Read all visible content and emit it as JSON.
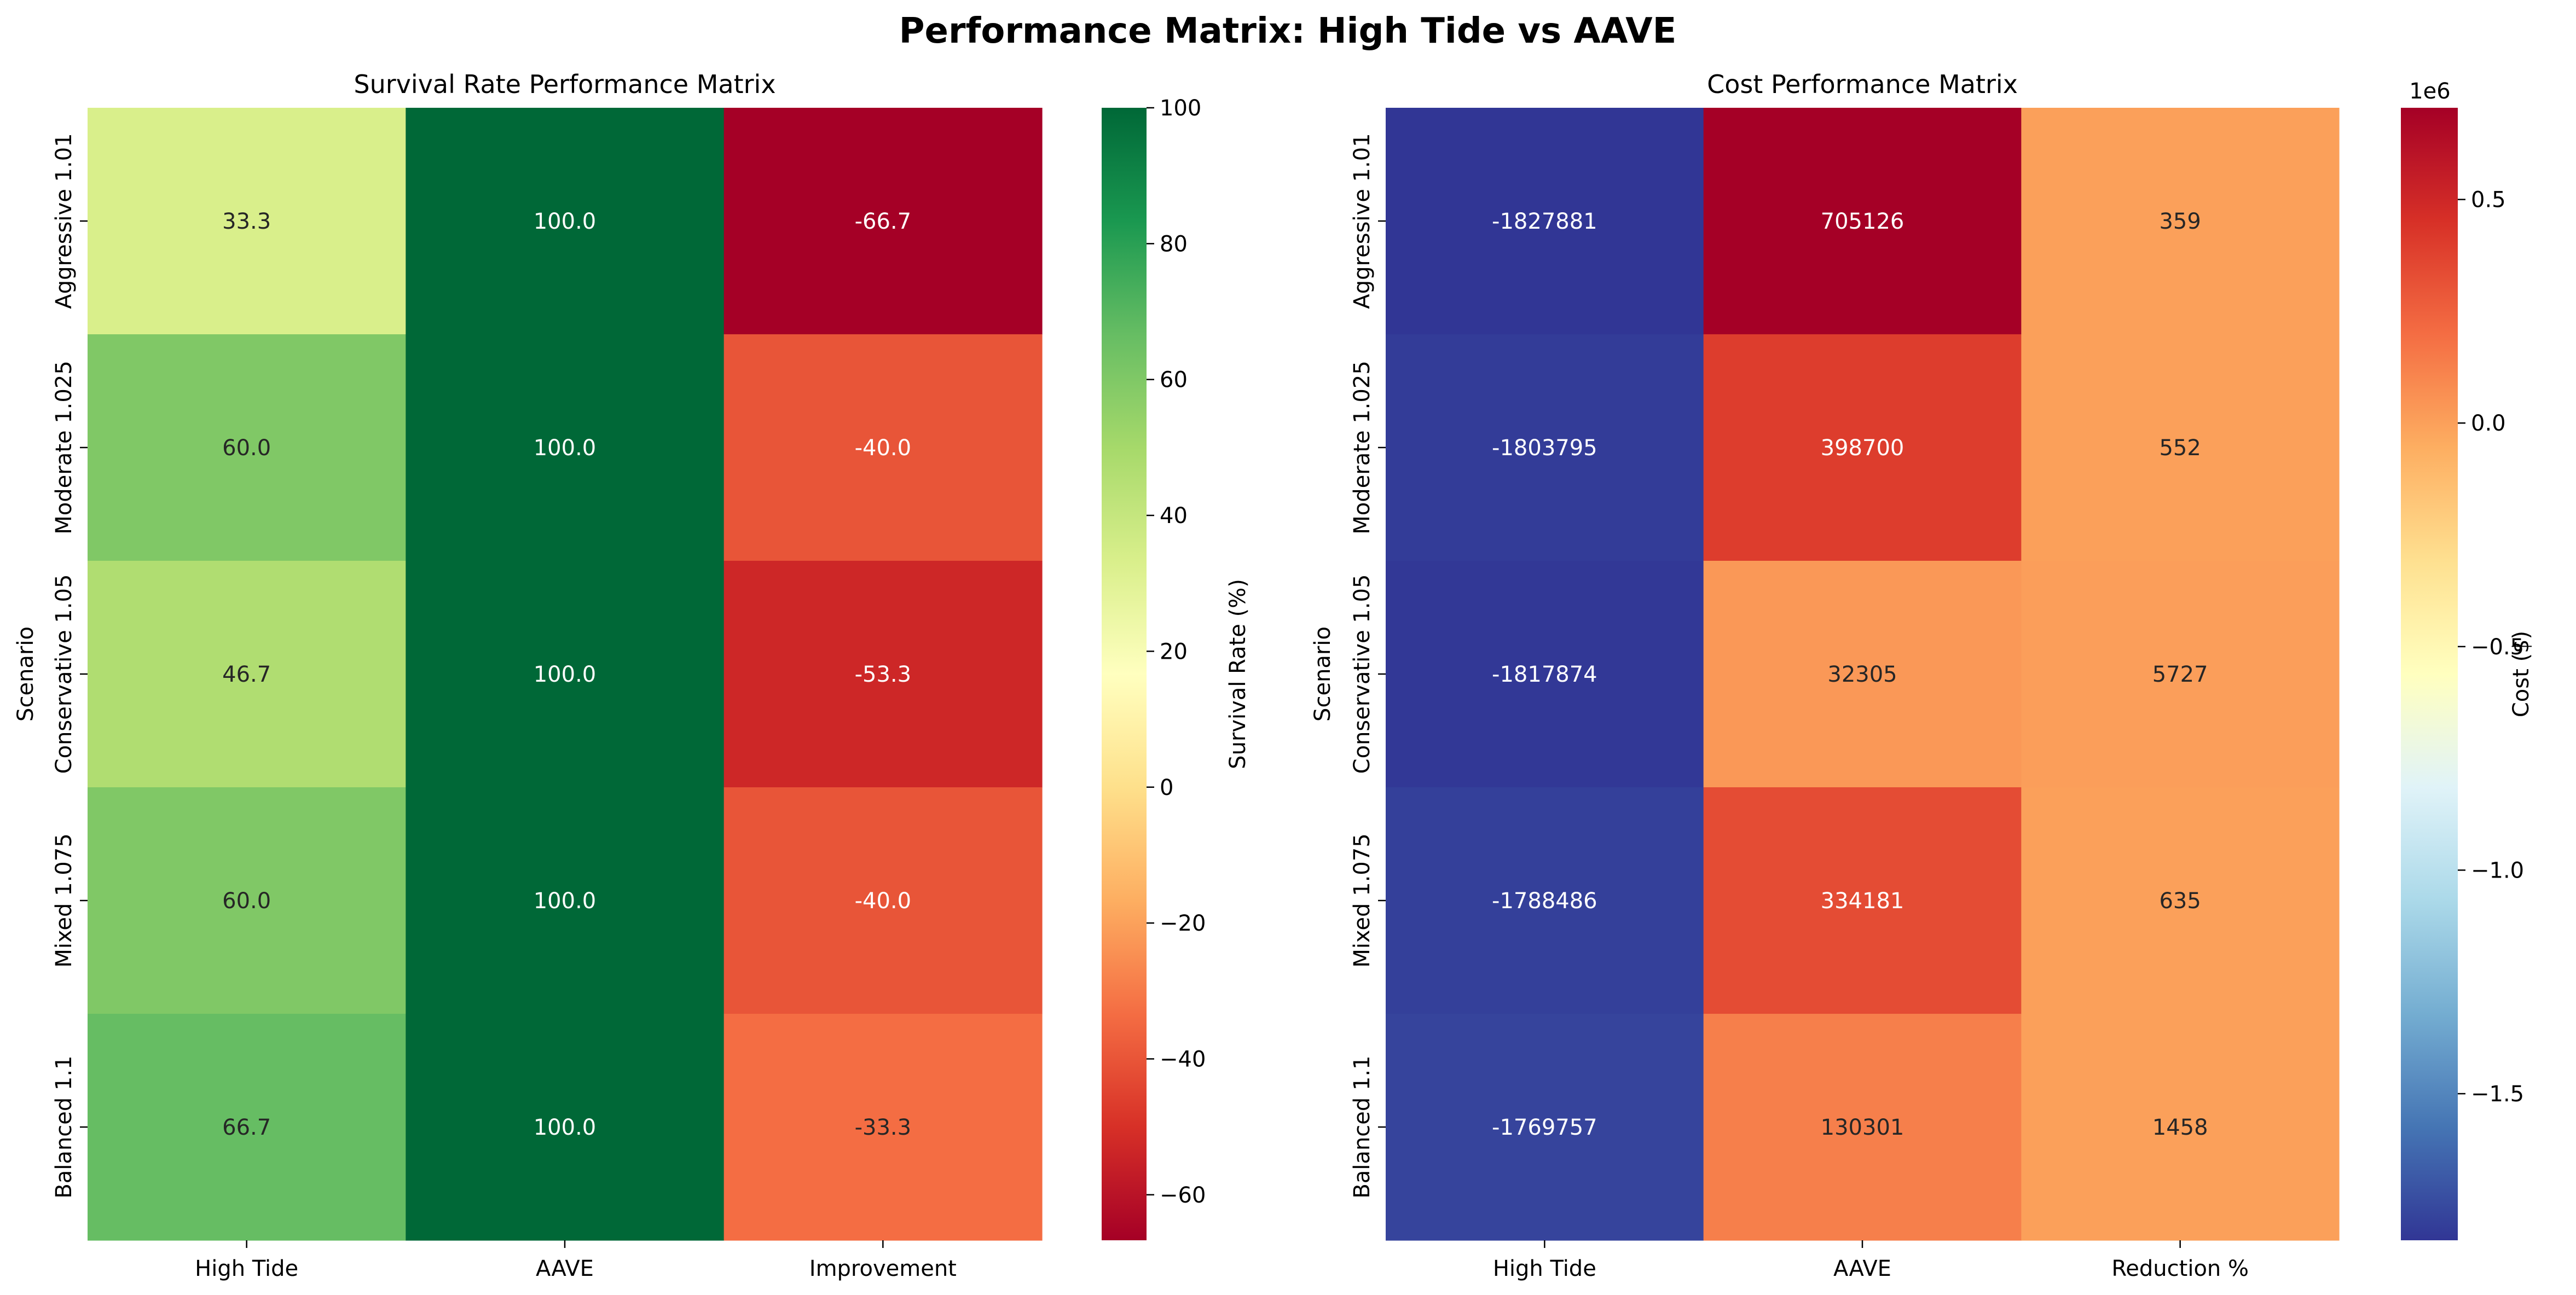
{
  "title": "Performance Matrix: High Tide vs AAVE",
  "chart_data": [
    {
      "type": "heatmap",
      "title": "Survival Rate Performance Matrix",
      "ylabel": "Scenario",
      "xlabel": "",
      "columns": [
        "High Tide",
        "AAVE",
        "Improvement"
      ],
      "rows": [
        "Aggressive 1.01",
        "Moderate 1.025",
        "Conservative 1.05",
        "Mixed 1.075",
        "Balanced 1.1"
      ],
      "values": [
        [
          33.3,
          100.0,
          -66.7
        ],
        [
          60.0,
          100.0,
          -40.0
        ],
        [
          46.7,
          100.0,
          -53.3
        ],
        [
          60.0,
          100.0,
          -40.0
        ],
        [
          66.7,
          100.0,
          -33.3
        ]
      ],
      "cell_labels": [
        [
          "33.3",
          "100.0",
          "-66.7"
        ],
        [
          "60.0",
          "100.0",
          "-40.0"
        ],
        [
          "46.7",
          "100.0",
          "-53.3"
        ],
        [
          "60.0",
          "100.0",
          "-40.0"
        ],
        [
          "66.7",
          "100.0",
          "-33.3"
        ]
      ],
      "colormap": "RdYlGn",
      "vmin": -66.7,
      "vmax": 100,
      "colorbar": {
        "label": "Survival Rate (%)",
        "ticks": [
          -60,
          -40,
          -20,
          0,
          20,
          40,
          60,
          80,
          100
        ],
        "tick_labels": [
          "−60",
          "−40",
          "−20",
          "0",
          "20",
          "40",
          "60",
          "80",
          "100"
        ]
      }
    },
    {
      "type": "heatmap",
      "title": "Cost Performance Matrix",
      "ylabel": "Scenario",
      "xlabel": "",
      "columns": [
        "High Tide",
        "AAVE",
        "Reduction %"
      ],
      "rows": [
        "Aggressive 1.01",
        "Moderate 1.025",
        "Conservative 1.05",
        "Mixed 1.075",
        "Balanced 1.1"
      ],
      "values": [
        [
          -1827881,
          705126,
          359
        ],
        [
          -1803795,
          398700,
          552
        ],
        [
          -1817874,
          32305,
          5727
        ],
        [
          -1788486,
          334181,
          635
        ],
        [
          -1769757,
          130301,
          1458
        ]
      ],
      "cell_labels": [
        [
          "-1827881",
          "705126",
          "359"
        ],
        [
          "-1803795",
          "398700",
          "552"
        ],
        [
          "-1817874",
          "32305",
          "5727"
        ],
        [
          "-1788486",
          "334181",
          "635"
        ],
        [
          "-1769757",
          "130301",
          "1458"
        ]
      ],
      "colormap": "RdYlBu_r",
      "vmin": -1827881,
      "vmax": 705126,
      "colorbar": {
        "label": "Cost ($)",
        "scale_label": "1e6",
        "ticks": [
          -1.5,
          -1.0,
          -0.5,
          0.0,
          0.5
        ],
        "tick_labels": [
          "−1.5",
          "−1.0",
          "−0.5",
          "0.0",
          "0.5"
        ],
        "tick_multiplier": 1000000
      }
    }
  ]
}
